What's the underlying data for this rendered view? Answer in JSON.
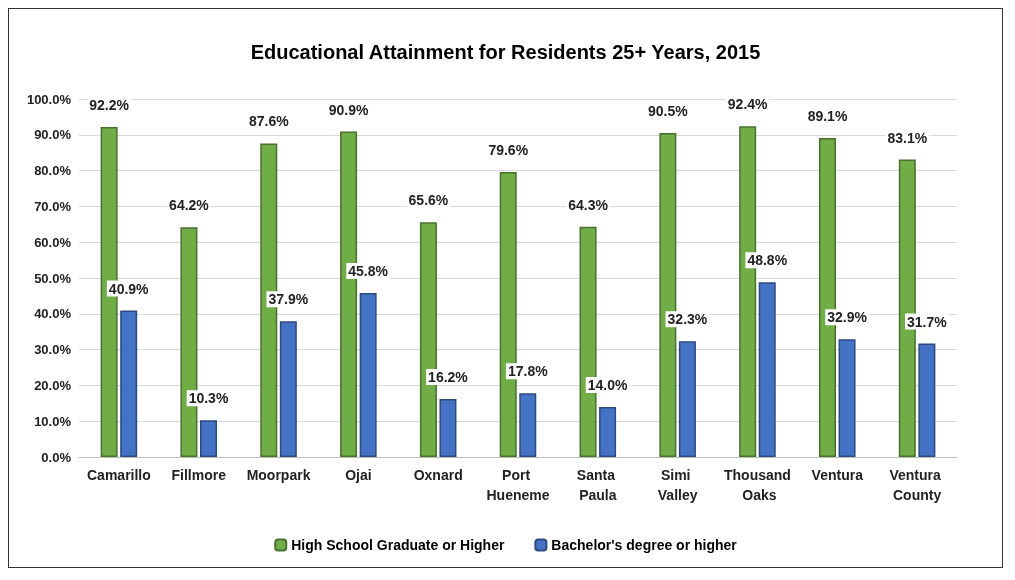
{
  "chart_data": {
    "type": "bar",
    "title": "Educational Attainment for Residents 25+ Years, 2015",
    "categories": [
      "Camarillo",
      "Fillmore",
      "Moorpark",
      "Ojai",
      "Oxnard",
      "Port Hueneme",
      "Santa Paula",
      "Simi Valley",
      "Thousand Oaks",
      "Ventura",
      "Ventura County"
    ],
    "series": [
      {
        "name": "High School Graduate or Higher",
        "color": "#70ad47",
        "values": [
          92.2,
          64.2,
          87.6,
          90.9,
          65.6,
          79.6,
          64.3,
          90.5,
          92.4,
          89.1,
          83.1
        ],
        "value_labels": [
          "92.2%",
          "64.2%",
          "87.6%",
          "90.9%",
          "65.6%",
          "79.6%",
          "64.3%",
          "90.5%",
          "92.4%",
          "89.1%",
          "83.1%"
        ]
      },
      {
        "name": "Bachelor's degree or higher",
        "color": "#4472c4",
        "values": [
          40.9,
          10.3,
          37.9,
          45.8,
          16.2,
          17.8,
          14.0,
          32.3,
          48.8,
          32.9,
          31.7
        ],
        "value_labels": [
          "40.9%",
          "10.3%",
          "37.9%",
          "45.8%",
          "16.2%",
          "17.8%",
          "14.0%",
          "32.3%",
          "48.8%",
          "32.9%",
          "31.7%"
        ]
      }
    ],
    "ylim": [
      0,
      100
    ],
    "yticks": [
      {
        "value": 0,
        "label": "0.0%"
      },
      {
        "value": 10,
        "label": "10.0%"
      },
      {
        "value": 20,
        "label": "20.0%"
      },
      {
        "value": 30,
        "label": "30.0%"
      },
      {
        "value": 40,
        "label": "40.0%"
      },
      {
        "value": 50,
        "label": "50.0%"
      },
      {
        "value": 60,
        "label": "60.0%"
      },
      {
        "value": 70,
        "label": "70.0%"
      },
      {
        "value": 80,
        "label": "80.0%"
      },
      {
        "value": 90,
        "label": "90.0%"
      },
      {
        "value": 100,
        "label": "100.0%"
      }
    ],
    "grid": "y",
    "legend": "bottom"
  }
}
